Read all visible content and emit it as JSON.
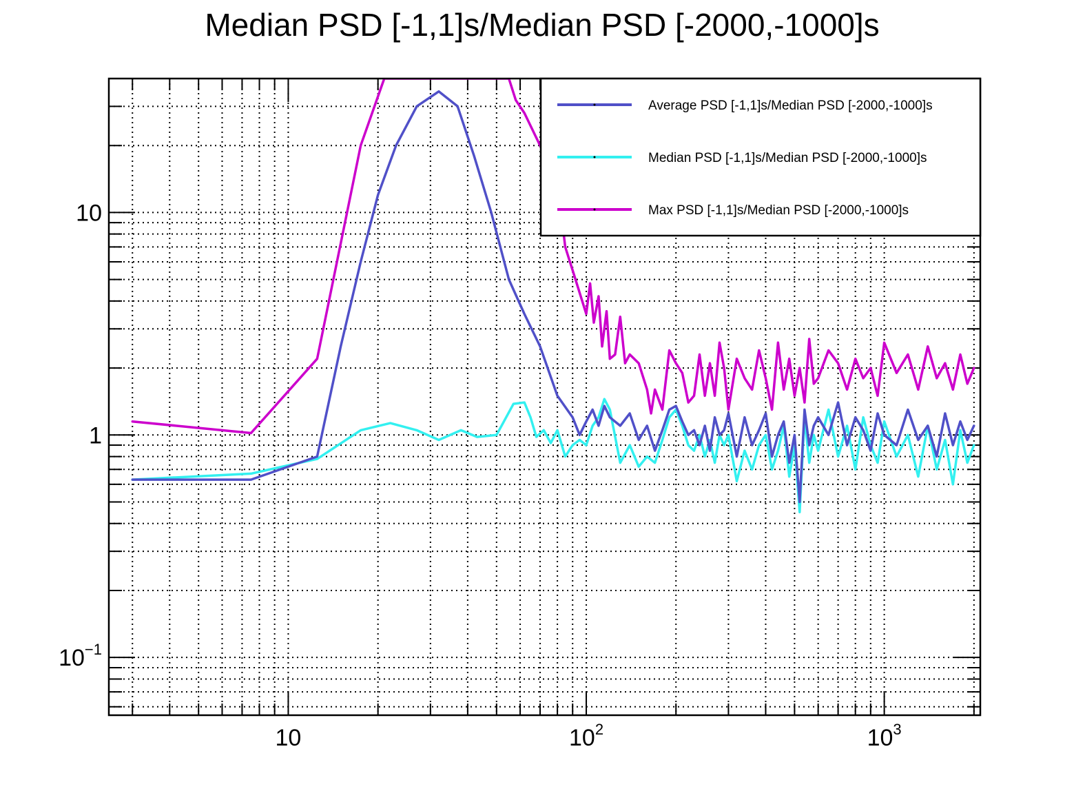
{
  "chart_data": {
    "type": "line",
    "title": "Median PSD [-1,1]s/Median PSD [-2000,-1000]s",
    "xlabel": "",
    "ylabel": "",
    "x_scale": "log",
    "y_scale": "log",
    "xlim": [
      2.5,
      2100
    ],
    "ylim": [
      0.055,
      40
    ],
    "grid": true,
    "legend_position": "top-right",
    "x_tick_labels": [
      {
        "value": 10,
        "base": "10",
        "exp": ""
      },
      {
        "value": 100,
        "base": "10",
        "exp": "2"
      },
      {
        "value": 1000,
        "base": "10",
        "exp": "3"
      }
    ],
    "y_tick_labels": [
      {
        "value": 0.1,
        "base": "10",
        "exp": "−1"
      },
      {
        "value": 1,
        "base": "1",
        "exp": ""
      },
      {
        "value": 10,
        "base": "10",
        "exp": ""
      }
    ],
    "series": [
      {
        "name": "Max PSD [-1,1]s/Median PSD [-2000,-1000]s",
        "color": "#cc00cc",
        "x": [
          3,
          7.5,
          12.5,
          17.5,
          21,
          55,
          58,
          62,
          70,
          80,
          85,
          90,
          100,
          103,
          106,
          110,
          113,
          117,
          120,
          125,
          130,
          135,
          140,
          150,
          160,
          165,
          170,
          180,
          190,
          200,
          210,
          220,
          230,
          240,
          250,
          260,
          270,
          280,
          290,
          300,
          320,
          340,
          360,
          380,
          400,
          420,
          440,
          460,
          480,
          500,
          520,
          540,
          560,
          580,
          600,
          650,
          700,
          750,
          800,
          850,
          900,
          950,
          1000,
          1100,
          1200,
          1300,
          1400,
          1500,
          1600,
          1700,
          1800,
          1900,
          2000
        ],
        "values": [
          1.15,
          1.02,
          2.2,
          20,
          40,
          40,
          32,
          28,
          20,
          14,
          7,
          5.5,
          3.5,
          4.8,
          3.2,
          4.2,
          2.5,
          3.6,
          2.2,
          2.3,
          3.4,
          2.1,
          2.3,
          2.1,
          1.6,
          1.25,
          1.6,
          1.3,
          2.4,
          2.1,
          1.9,
          1.4,
          1.5,
          2.3,
          1.5,
          2.1,
          1.5,
          2.6,
          2.0,
          1.3,
          2.2,
          1.8,
          1.6,
          2.4,
          1.8,
          1.3,
          2.6,
          1.6,
          2.2,
          1.5,
          2.0,
          1.4,
          2.7,
          1.7,
          1.8,
          2.4,
          2.1,
          1.6,
          2.2,
          1.8,
          2.0,
          1.5,
          2.6,
          1.9,
          2.3,
          1.6,
          2.5,
          1.8,
          2.1,
          1.6,
          2.3,
          1.7,
          2.0
        ]
      },
      {
        "name": "Median PSD [-1,1]s/Median PSD [-2000,-1000]s",
        "color": "#33f0f0",
        "x": [
          3,
          7.5,
          12.5,
          17.5,
          22,
          27,
          32,
          38,
          43,
          50,
          57,
          62,
          65,
          68,
          72,
          76,
          80,
          85,
          90,
          95,
          100,
          105,
          110,
          115,
          120,
          130,
          140,
          150,
          160,
          170,
          180,
          190,
          200,
          210,
          220,
          230,
          240,
          250,
          260,
          270,
          280,
          290,
          300,
          320,
          340,
          360,
          380,
          400,
          420,
          440,
          460,
          480,
          500,
          520,
          540,
          560,
          580,
          600,
          650,
          700,
          750,
          800,
          850,
          900,
          950,
          1000,
          1100,
          1200,
          1300,
          1400,
          1500,
          1600,
          1700,
          1800,
          1900,
          2000
        ],
        "values": [
          0.63,
          0.67,
          0.78,
          1.05,
          1.13,
          1.05,
          0.95,
          1.05,
          0.98,
          1.0,
          1.38,
          1.4,
          1.2,
          0.98,
          1.05,
          0.92,
          1.05,
          0.8,
          0.9,
          0.95,
          0.9,
          1.1,
          1.2,
          1.45,
          1.3,
          0.75,
          0.9,
          0.72,
          0.8,
          0.75,
          0.95,
          1.2,
          1.3,
          1.1,
          0.9,
          0.85,
          1.0,
          0.8,
          0.95,
          0.75,
          1.0,
          0.9,
          1.0,
          0.62,
          0.85,
          0.7,
          0.9,
          1.0,
          0.7,
          0.85,
          1.1,
          0.65,
          0.9,
          0.45,
          1.2,
          0.75,
          1.0,
          0.85,
          1.3,
          0.8,
          1.1,
          0.7,
          1.2,
          0.9,
          0.75,
          1.15,
          0.8,
          1.0,
          0.65,
          1.1,
          0.7,
          0.95,
          0.6,
          1.05,
          0.75,
          0.9
        ]
      },
      {
        "name": "Average PSD [-1,1]s/Median PSD [-2000,-1000]s",
        "color": "#5050c8",
        "x": [
          3,
          7.5,
          12.5,
          15,
          17.5,
          20,
          23,
          27,
          32,
          37,
          42,
          48,
          55,
          62,
          70,
          80,
          90,
          95,
          100,
          105,
          110,
          115,
          120,
          130,
          140,
          150,
          160,
          170,
          180,
          190,
          200,
          210,
          220,
          230,
          240,
          250,
          260,
          270,
          280,
          290,
          300,
          320,
          340,
          360,
          380,
          400,
          420,
          440,
          460,
          480,
          500,
          520,
          540,
          560,
          580,
          600,
          650,
          700,
          750,
          800,
          850,
          900,
          950,
          1000,
          1100,
          1200,
          1300,
          1400,
          1500,
          1600,
          1700,
          1800,
          1900,
          2000
        ],
        "values": [
          0.63,
          0.63,
          0.8,
          2.5,
          6,
          12,
          20,
          30,
          35,
          30,
          18,
          10,
          5,
          3.5,
          2.5,
          1.5,
          1.2,
          1.0,
          1.15,
          1.3,
          1.1,
          1.35,
          1.2,
          1.1,
          1.25,
          0.95,
          1.1,
          0.85,
          1.05,
          1.3,
          1.35,
          1.15,
          1.0,
          1.05,
          0.9,
          1.1,
          0.85,
          1.2,
          1.0,
          1.05,
          1.25,
          0.8,
          1.2,
          0.9,
          1.05,
          1.25,
          0.8,
          1.0,
          1.15,
          0.75,
          1.0,
          0.5,
          1.3,
          0.9,
          1.1,
          1.2,
          1.0,
          1.4,
          0.9,
          1.2,
          1.05,
          0.85,
          1.25,
          1.0,
          0.9,
          1.3,
          0.95,
          1.1,
          0.8,
          1.25,
          0.9,
          1.15,
          0.95,
          1.1
        ]
      }
    ],
    "legend_entries": [
      {
        "label": "Average PSD [-1,1]s/Median PSD [-2000,-1000]s",
        "color": "#5050c8"
      },
      {
        "label": "Median PSD [-1,1]s/Median PSD [-2000,-1000]s",
        "color": "#33f0f0"
      },
      {
        "label": "Max PSD [-1,1]s/Median PSD [-2000,-1000]s",
        "color": "#cc00cc"
      }
    ]
  }
}
